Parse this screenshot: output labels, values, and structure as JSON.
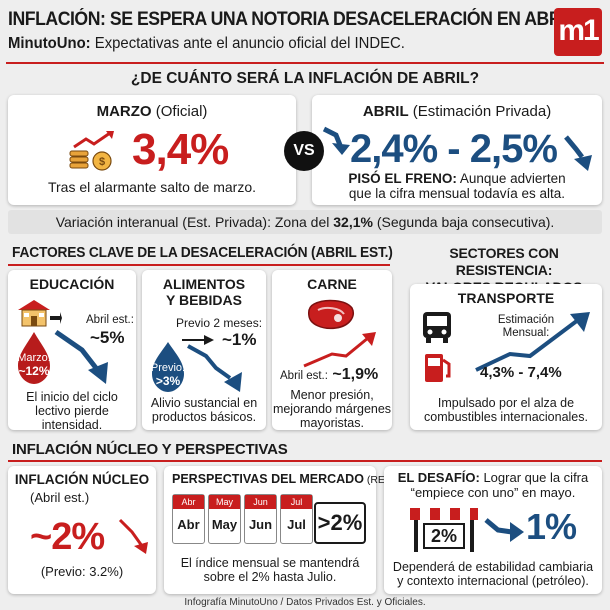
{
  "header": {
    "title": "INFLACIÓN: SE ESPERA UNA NOTORIA DESACELERACIÓN EN ABRIL",
    "subtitle_brand": "MinutoUno:",
    "subtitle_text": " Expectativas ante el anuncio oficial del INDEC.",
    "logo_text": "m1"
  },
  "question": "¿DE CUÁNTO SERÁ LA INFLACIÓN DE ABRIL?",
  "marzo": {
    "label": "MARZO",
    "qualifier": " (Oficial)",
    "value": "3,4%",
    "caption": "Tras el alarmante salto de marzo."
  },
  "vs": "VS",
  "abril": {
    "label": "ABRIL",
    "qualifier": " (Estimación Privada)",
    "value": "2,4% - 2,5%",
    "caption_bold": "PISÓ EL FRENO:",
    "caption_line1": " Aunque advierten",
    "caption_line2": "que la cifra mensual todavía es alta."
  },
  "interanual": {
    "prefix": "Variación interanual (Est. Privada): Zona del ",
    "value": "32,1%",
    "suffix": " (Segunda baja consecutiva)."
  },
  "factores": {
    "title": "FACTORES CLAVE DE LA DESACELERACIÓN (ABRIL EST.)",
    "educacion": {
      "title": "EDUCACIÓN",
      "est_label": "Abril est.:",
      "est_value": "~5%",
      "drop_label": "Marzo:",
      "drop_value": "~12%",
      "caption": [
        "El inicio del ciclo",
        "lectivo pierde",
        "intensidad."
      ]
    },
    "alimentos": {
      "title": [
        "ALIMENTOS",
        "Y BEBIDAS"
      ],
      "est_label": "Previo 2 meses:",
      "est_value": "~1%",
      "drop_label": "Previo:",
      "drop_value": ">3%",
      "caption": [
        "Alivio sustancial en",
        "productos básicos."
      ]
    },
    "carne": {
      "title": "CARNE",
      "est_label": "Abril est.:",
      "est_value": "~1,9%",
      "caption": [
        "Menor presión,",
        "mejorando márgenes",
        "mayoristas."
      ]
    }
  },
  "sectores": {
    "title": [
      "SECTORES CON RESISTENCIA:",
      "VALORES REGULADOS"
    ],
    "transporte": {
      "title": "TRANSPORTE",
      "est_label": [
        "Estimación",
        "Mensual:"
      ],
      "est_value": "4,3% - 7,4%",
      "caption": [
        "Impulsado por el alza de",
        "combustibles internacionales."
      ]
    }
  },
  "nucleo_section": {
    "title": "INFLACIÓN NÚCLEO Y PERSPECTIVAS",
    "nucleo": {
      "title": "INFLACIÓN NÚCLEO",
      "subtitle": "(Abril est.)",
      "value": "~2%",
      "previo": "(Previo: 3.2%)"
    },
    "perspectivas": {
      "title": "PERSPECTIVAS DEL MERCADO",
      "title_suffix": " (REM)",
      "months": [
        "Abr",
        "May",
        "Jun",
        "Jul"
      ],
      "value": ">2%",
      "caption": [
        "El índice mensual se mantendrá",
        "sobre el 2% hasta Julio."
      ]
    },
    "desafio": {
      "title_bold": "EL DESAFÍO:",
      "title_line1": " Lograr que la cifra",
      "title_line2": "“empiece con uno” en mayo.",
      "from_value": "2%",
      "to_value": "1%",
      "caption": [
        "Dependerá de estabilidad cambiaria",
        "y contexto internacional (petróleo)."
      ]
    }
  },
  "footer": "Infografía MinutoUno / Datos Privados Est. y Oficiales.",
  "colors": {
    "accent_red": "#c81e1e",
    "accent_blue": "#1c4e80",
    "background": "#eeeeee"
  }
}
